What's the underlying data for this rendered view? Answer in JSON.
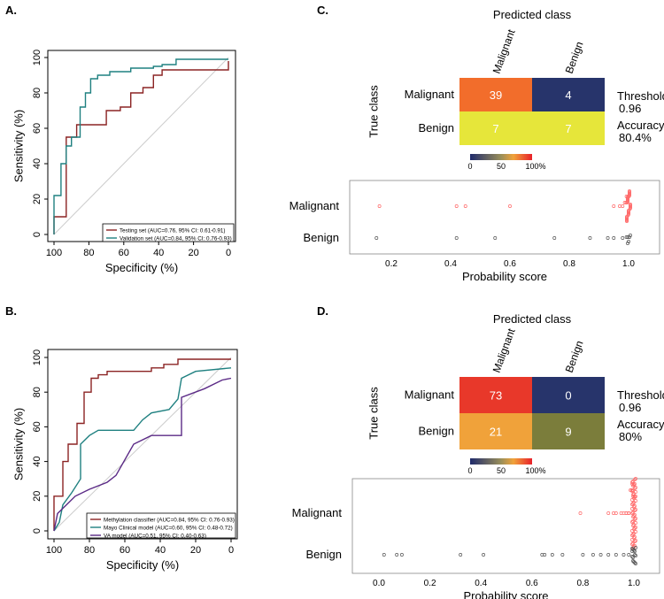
{
  "colors": {
    "red": "#8b2323",
    "teal": "#1f8080",
    "purple": "#5b2a86",
    "gray_dot": "#555555",
    "pink_dot": "#ff6b6b",
    "diag": "#cccccc",
    "heat_dark": "#27346b",
    "heat_red": "#e8382a",
    "heat_orange": "#f26d2b",
    "heat_yellow": "#e6e63a",
    "heat_olive": "#7b7d3b",
    "heat_amber": "#f0a23a"
  },
  "panels": {
    "A": {
      "label": "A.",
      "ylabel": "Sensitivity (%)",
      "xlabel": "Specificity (%)",
      "xticks": [
        "100",
        "80",
        "60",
        "40",
        "20",
        "0"
      ],
      "yticks": [
        "0",
        "20",
        "40",
        "60",
        "80",
        "100"
      ],
      "legend": [
        "Testing set (AUC=0.76, 95% CI: 0.61-0.91)",
        "Validation set (AUC=0.84, 95% CI: 0.76-0.93)"
      ]
    },
    "B": {
      "label": "B.",
      "ylabel": "Sensitivity (%)",
      "xlabel": "Specificity (%)",
      "xticks": [
        "100",
        "80",
        "60",
        "40",
        "20",
        "0"
      ],
      "yticks": [
        "0",
        "20",
        "40",
        "60",
        "80",
        "100"
      ],
      "legend": [
        "Methylation classifier (AUC=0.84, 95% CI: 0.76-0.93)",
        "Mayo Clinical model (AUC=0.60, 95% CI: 0.48-0.72)",
        "VA model (AUC=0.51, 95% CI: 0.40-0.63)"
      ]
    },
    "C": {
      "label": "C.",
      "predicted": "Predicted class",
      "true_class": "True class",
      "col_labels": [
        "Malignant",
        "Benign"
      ],
      "row_labels": [
        "Malignant",
        "Benign"
      ],
      "cells": [
        "39",
        "4",
        "7",
        "7"
      ],
      "threshold_label": "Threshold",
      "threshold_value": "0.96",
      "accuracy_label": "Accuracy",
      "accuracy_value": "80.4%",
      "scale_ticks": [
        "0",
        "50",
        "100%"
      ],
      "dot_rows": [
        "Malignant",
        "Benign"
      ],
      "dot_xticks": [
        "0.2",
        "0.4",
        "0.6",
        "0.8",
        "1.0"
      ],
      "dot_xlabel": "Probability score"
    },
    "D": {
      "label": "D.",
      "predicted": "Predicted class",
      "true_class": "True class",
      "col_labels": [
        "Malignant",
        "Benign"
      ],
      "row_labels": [
        "Malignant",
        "Benign"
      ],
      "cells": [
        "73",
        "0",
        "21",
        "9"
      ],
      "threshold_label": "Threshold",
      "threshold_value": "0.96",
      "accuracy_label": "Accuracy",
      "accuracy_value": "80%",
      "scale_ticks": [
        "0",
        "50",
        "100%"
      ],
      "dot_rows": [
        "Malignant",
        "Benign"
      ],
      "dot_xticks": [
        "0.0",
        "0.2",
        "0.4",
        "0.6",
        "0.8",
        "1.0"
      ],
      "dot_xlabel": "Probability score"
    }
  },
  "chart_data": [
    {
      "type": "line",
      "panel": "A",
      "title": "",
      "xlabel": "Specificity (%)",
      "ylabel": "Sensitivity (%)",
      "xlim": [
        100,
        0
      ],
      "ylim": [
        0,
        100
      ],
      "series": [
        {
          "name": "Testing set (AUC=0.76, 95% CI: 0.61-0.91)",
          "color": "#8b2323",
          "points": [
            [
              100,
              0
            ],
            [
              100,
              10
            ],
            [
              93,
              10
            ],
            [
              93,
              55
            ],
            [
              87,
              55
            ],
            [
              87,
              62
            ],
            [
              70,
              62
            ],
            [
              70,
              70
            ],
            [
              62,
              70
            ],
            [
              62,
              72
            ],
            [
              56,
              72
            ],
            [
              56,
              80
            ],
            [
              49,
              80
            ],
            [
              49,
              83
            ],
            [
              43,
              83
            ],
            [
              43,
              90
            ],
            [
              38,
              90
            ],
            [
              38,
              93
            ],
            [
              0,
              93
            ],
            [
              0,
              98
            ]
          ]
        },
        {
          "name": "Validation set (AUC=0.84, 95% CI: 0.76-0.93)",
          "color": "#1f8080",
          "points": [
            [
              100,
              0
            ],
            [
              100,
              22
            ],
            [
              96,
              22
            ],
            [
              96,
              40
            ],
            [
              93,
              40
            ],
            [
              93,
              50
            ],
            [
              90,
              50
            ],
            [
              90,
              55
            ],
            [
              85,
              55
            ],
            [
              85,
              72
            ],
            [
              82,
              72
            ],
            [
              82,
              80
            ],
            [
              79,
              80
            ],
            [
              79,
              88
            ],
            [
              75,
              88
            ],
            [
              75,
              90
            ],
            [
              68,
              90
            ],
            [
              68,
              92
            ],
            [
              56,
              92
            ],
            [
              56,
              94
            ],
            [
              43,
              94
            ],
            [
              43,
              95
            ],
            [
              38,
              95
            ],
            [
              38,
              96
            ],
            [
              30,
              96
            ],
            [
              30,
              99
            ],
            [
              0,
              99
            ]
          ]
        }
      ]
    },
    {
      "type": "line",
      "panel": "B",
      "title": "",
      "xlabel": "Specificity (%)",
      "ylabel": "Sensitivity (%)",
      "xlim": [
        100,
        0
      ],
      "ylim": [
        0,
        100
      ],
      "series": [
        {
          "name": "Methylation classifier (AUC=0.84, 95% CI: 0.76-0.93)",
          "color": "#8b2323",
          "points": [
            [
              100,
              0
            ],
            [
              100,
              20
            ],
            [
              95,
              20
            ],
            [
              95,
              40
            ],
            [
              92,
              40
            ],
            [
              92,
              50
            ],
            [
              87,
              50
            ],
            [
              87,
              62
            ],
            [
              83,
              62
            ],
            [
              83,
              80
            ],
            [
              79,
              80
            ],
            [
              79,
              88
            ],
            [
              75,
              88
            ],
            [
              75,
              90
            ],
            [
              70,
              90
            ],
            [
              70,
              92
            ],
            [
              45,
              92
            ],
            [
              45,
              94
            ],
            [
              38,
              94
            ],
            [
              38,
              96
            ],
            [
              30,
              96
            ],
            [
              30,
              99
            ],
            [
              0,
              99
            ]
          ]
        },
        {
          "name": "Mayo Clinical model (AUC=0.60, 95% CI: 0.48-0.72)",
          "color": "#1f8080",
          "points": [
            [
              100,
              0
            ],
            [
              97,
              5
            ],
            [
              95,
              15
            ],
            [
              90,
              22
            ],
            [
              85,
              30
            ],
            [
              85,
              50
            ],
            [
              80,
              55
            ],
            [
              75,
              58
            ],
            [
              55,
              58
            ],
            [
              50,
              64
            ],
            [
              45,
              68
            ],
            [
              35,
              70
            ],
            [
              30,
              76
            ],
            [
              28,
              88
            ],
            [
              20,
              92
            ],
            [
              0,
              94
            ]
          ]
        },
        {
          "name": "VA model (AUC=0.51, 95% CI: 0.40-0.63)",
          "color": "#5b2a86",
          "points": [
            [
              100,
              0
            ],
            [
              98,
              10
            ],
            [
              93,
              15
            ],
            [
              88,
              20
            ],
            [
              80,
              24
            ],
            [
              70,
              28
            ],
            [
              65,
              32
            ],
            [
              55,
              50
            ],
            [
              45,
              55
            ],
            [
              28,
              55
            ],
            [
              28,
              77
            ],
            [
              15,
              82
            ],
            [
              5,
              87
            ],
            [
              0,
              88
            ]
          ]
        }
      ]
    },
    {
      "type": "heatmap",
      "panel": "C",
      "title": "Predicted class",
      "xlabel": "Predicted class",
      "ylabel": "True class",
      "columns": [
        "Malignant",
        "Benign"
      ],
      "rows": [
        "Malignant",
        "Benign"
      ],
      "values": [
        [
          39,
          4
        ],
        [
          7,
          7
        ]
      ],
      "row_percent": [
        [
          90.7,
          9.3
        ],
        [
          50,
          50
        ]
      ],
      "scale": [
        0,
        100
      ]
    },
    {
      "type": "scatter",
      "panel": "C",
      "xlabel": "Probability score",
      "xlim": [
        0.1,
        1.05
      ],
      "series": [
        {
          "name": "Malignant",
          "color": "#ff6b6b",
          "values": [
            0.16,
            0.42,
            0.45,
            0.6,
            0.95,
            0.97,
            0.98,
            0.99,
            0.99,
            0.995,
            0.995,
            0.998,
            0.998,
            0.999,
            0.999,
            1.0,
            1.0,
            1.0,
            1.0,
            1.0,
            1.0,
            1.0,
            1.0,
            1.0,
            1.0,
            1.0,
            1.0,
            1.0,
            1.0,
            1.0,
            1.0,
            1.0,
            1.0,
            1.0,
            1.0,
            1.0,
            1.0,
            1.0,
            1.0,
            1.0,
            1.0,
            1.0,
            1.0
          ]
        },
        {
          "name": "Benign",
          "color": "#555555",
          "values": [
            0.15,
            0.42,
            0.55,
            0.75,
            0.87,
            0.93,
            0.95,
            0.98,
            0.99,
            0.995,
            1.0,
            1.0,
            1.0,
            1.0
          ]
        }
      ]
    },
    {
      "type": "heatmap",
      "panel": "D",
      "title": "Predicted class",
      "xlabel": "Predicted class",
      "ylabel": "True class",
      "columns": [
        "Malignant",
        "Benign"
      ],
      "rows": [
        "Malignant",
        "Benign"
      ],
      "values": [
        [
          73,
          0
        ],
        [
          21,
          9
        ]
      ],
      "row_percent": [
        [
          100,
          0
        ],
        [
          70,
          30
        ]
      ],
      "scale": [
        0,
        100
      ]
    },
    {
      "type": "scatter",
      "panel": "D",
      "xlabel": "Probability score",
      "xlim": [
        -0.05,
        1.05
      ],
      "series": [
        {
          "name": "Malignant",
          "color": "#ff6b6b",
          "values": [
            0.79,
            0.9,
            0.92,
            0.93,
            0.95,
            0.96,
            0.97,
            0.97,
            0.98,
            0.98,
            0.99,
            0.99,
            0.99,
            0.995,
            0.995,
            0.995,
            1.0,
            1.0,
            1.0,
            1.0,
            1.0,
            1.0,
            1.0,
            1.0,
            1.0,
            1.0,
            1.0,
            1.0,
            1.0,
            1.0,
            1.0,
            1.0,
            1.0,
            1.0,
            1.0,
            1.0,
            1.0,
            1.0,
            1.0,
            1.0,
            1.0,
            1.0,
            1.0,
            1.0,
            1.0,
            1.0,
            1.0,
            1.0,
            1.0,
            1.0,
            1.0,
            1.0,
            1.0,
            1.0,
            1.0,
            1.0,
            1.0,
            1.0,
            1.0,
            1.0,
            1.0,
            1.0,
            1.0,
            1.0,
            1.0,
            1.0,
            1.0,
            1.0,
            1.0,
            1.0,
            1.0,
            1.0,
            1.0
          ]
        },
        {
          "name": "Benign",
          "color": "#555555",
          "values": [
            0.02,
            0.07,
            0.09,
            0.32,
            0.41,
            0.64,
            0.65,
            0.68,
            0.72,
            0.8,
            0.84,
            0.87,
            0.9,
            0.93,
            0.96,
            0.98,
            0.99,
            1.0,
            1.0,
            1.0,
            1.0,
            1.0,
            1.0,
            1.0,
            1.0,
            1.0,
            1.0,
            1.0,
            1.0,
            1.0
          ]
        }
      ]
    }
  ]
}
